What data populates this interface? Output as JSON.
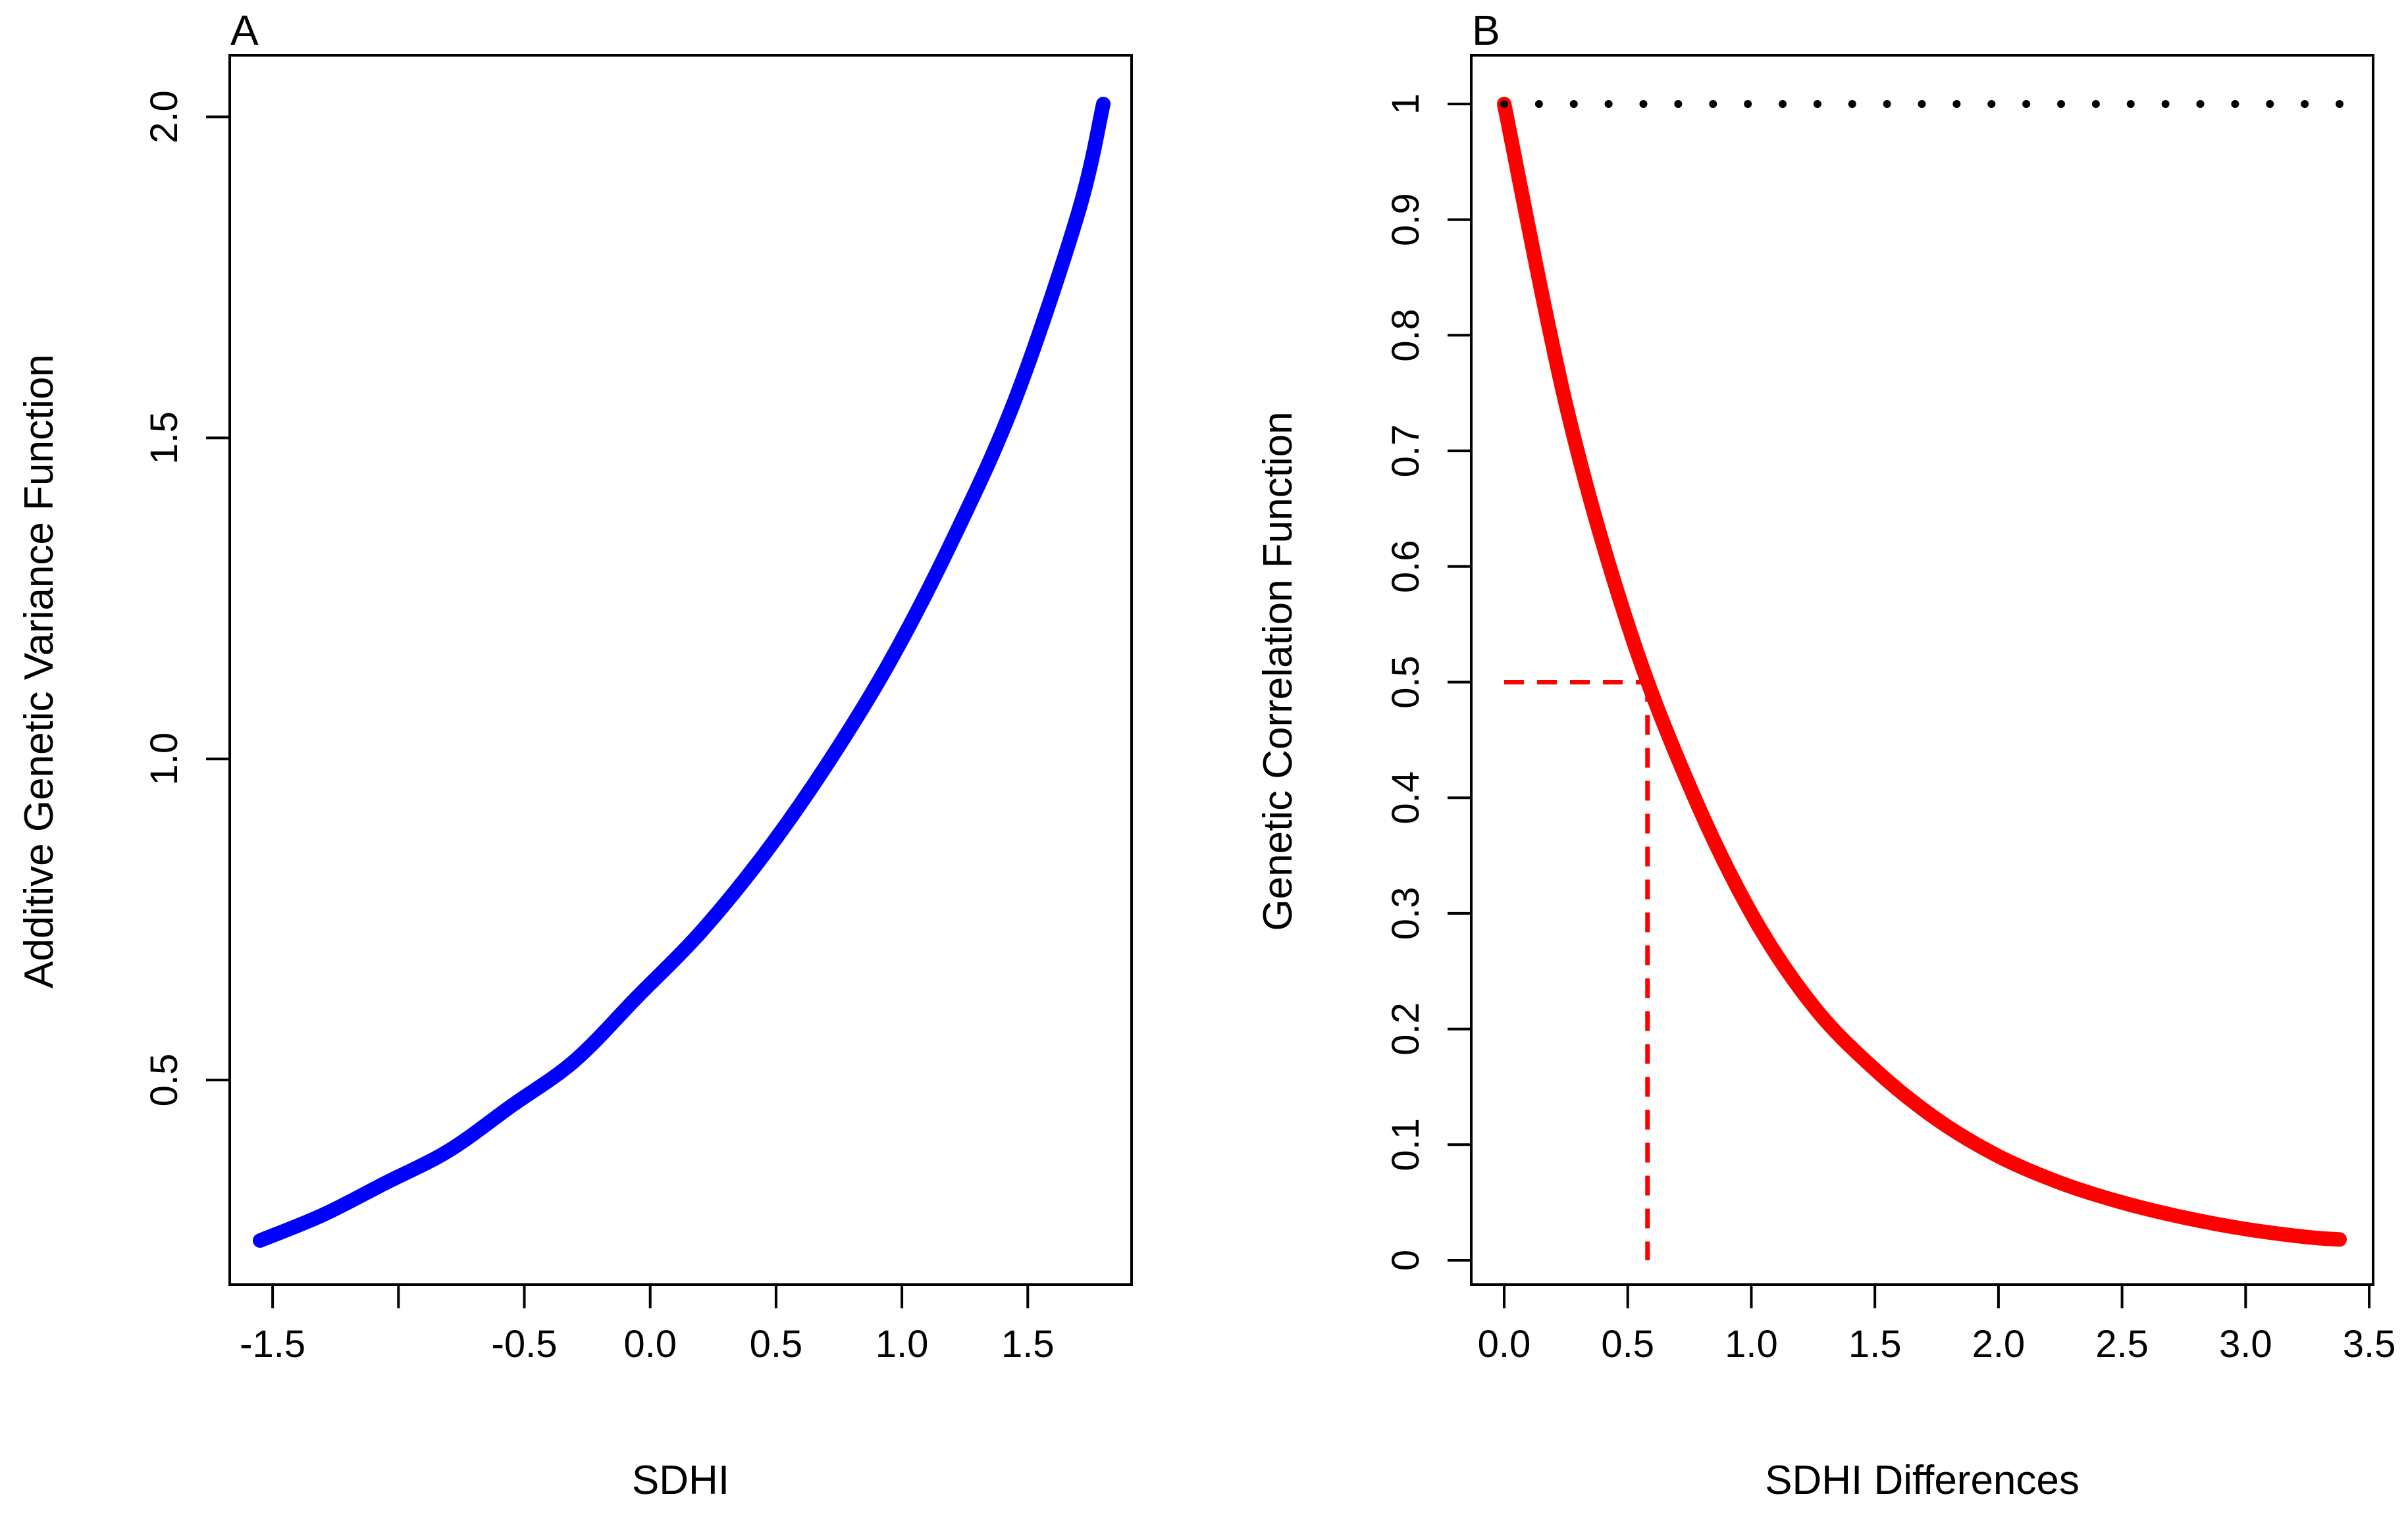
{
  "chart_data": [
    {
      "type": "line",
      "panel": "A",
      "xlabel": "SDHI",
      "ylabel": "Additive Genetic Variance Function",
      "xlim": [
        -1.55,
        1.8
      ],
      "ylim": [
        0.25,
        2.02
      ],
      "xticks": [
        -1.5,
        -1.0,
        -0.5,
        0.0,
        0.5,
        1.0,
        1.5
      ],
      "xtick_labels": [
        "-1.5",
        "",
        "-0.5",
        "0.0",
        "0.5",
        "1.0",
        "1.5"
      ],
      "yticks": [
        0.5,
        1.0,
        1.5,
        2.0
      ],
      "ytick_labels": [
        "0.5",
        "1.0",
        "1.5",
        "2.0"
      ],
      "series": [
        {
          "name": "additive genetic variance",
          "color": "#0000ff",
          "x": [
            -1.55,
            -1.3,
            -1.05,
            -0.8,
            -0.55,
            -0.3,
            -0.05,
            0.2,
            0.45,
            0.7,
            0.95,
            1.2,
            1.45,
            1.7,
            1.8
          ],
          "y": [
            0.25,
            0.29,
            0.34,
            0.39,
            0.46,
            0.53,
            0.63,
            0.73,
            0.85,
            0.99,
            1.15,
            1.34,
            1.56,
            1.85,
            2.02
          ]
        }
      ]
    },
    {
      "type": "line",
      "panel": "B",
      "xlabel": "SDHI Differences",
      "ylabel": "Genetic Correlation Function",
      "xlim": [
        0,
        3.38
      ],
      "ylim": [
        0,
        1
      ],
      "xticks": [
        0.0,
        0.5,
        1.0,
        1.5,
        2.0,
        2.5,
        3.0,
        3.5
      ],
      "xtick_labels": [
        "0.0",
        "0.5",
        "1.0",
        "1.5",
        "2.0",
        "2.5",
        "3.0",
        "3.5"
      ],
      "yticks": [
        0,
        0.1,
        0.2,
        0.3,
        0.4,
        0.5,
        0.6,
        0.7,
        0.8,
        0.9,
        1
      ],
      "ytick_labels": [
        "0",
        "0.1",
        "0.2",
        "0.3",
        "0.4",
        "0.5",
        "0.6",
        "0.7",
        "0.8",
        "0.9",
        "1"
      ],
      "series": [
        {
          "name": "genetic correlation",
          "color": "#ff0000",
          "x": [
            0.0,
            0.25,
            0.5,
            0.75,
            1.0,
            1.25,
            1.5,
            1.75,
            2.0,
            2.25,
            2.5,
            2.75,
            3.0,
            3.25,
            3.38
          ],
          "y": [
            1.0,
            0.74,
            0.55,
            0.41,
            0.3,
            0.22,
            0.165,
            0.122,
            0.09,
            0.067,
            0.05,
            0.037,
            0.027,
            0.02,
            0.018
          ]
        },
        {
          "name": "reference line at 1",
          "color": "#000000",
          "style": "dotted",
          "x": [
            0.0,
            3.38
          ],
          "y": [
            1.0,
            1.0
          ]
        }
      ],
      "annotations": {
        "half_correlation_y": 0.5,
        "half_correlation_x": 0.58,
        "color": "#ff0000",
        "style": "dashed"
      }
    }
  ]
}
